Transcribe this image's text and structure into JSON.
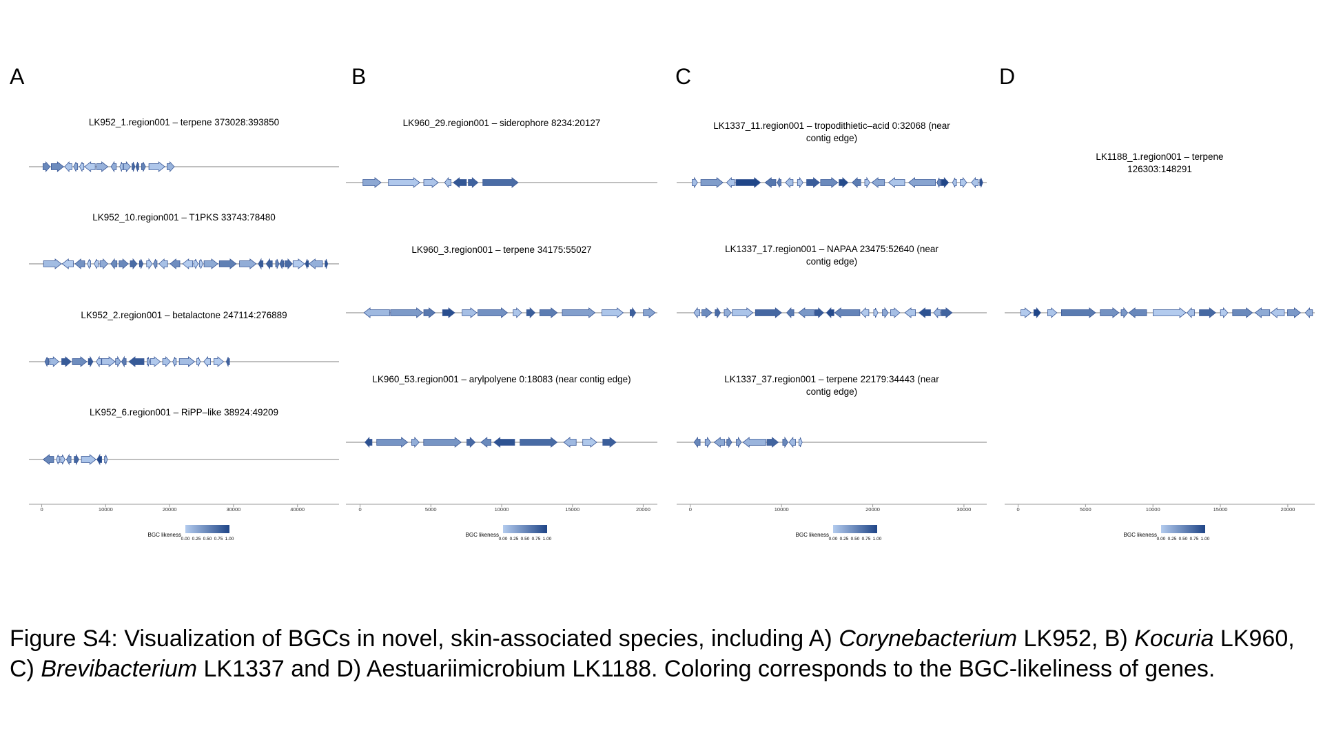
{
  "chart_data": [
    {
      "type": "gene-cluster-map",
      "panel": "A",
      "xlim": [
        -2000,
        46500
      ],
      "ticks": [
        "0",
        "10000",
        "20000",
        "30000",
        "40000"
      ],
      "tick_values": [
        0,
        10000,
        20000,
        30000,
        40000
      ],
      "legend": {
        "title": "BGC likeness",
        "ticks": [
          "0.00",
          "0.25",
          "0.50",
          "0.75",
          "1.00"
        ]
      },
      "tracks": [
        {
          "title": "LK952_1.region001 – terpene 373028:393850",
          "length": 20822
        },
        {
          "title": "LK952_10.region001 – T1PKS 33743:78480",
          "length": 44737
        },
        {
          "title": "LK952_2.region001 – betalactone 247114:276889",
          "length": 29775
        },
        {
          "title": "LK952_6.region001 – RiPP–like 38924:49209",
          "length": 10285
        }
      ]
    },
    {
      "type": "gene-cluster-map",
      "panel": "B",
      "xlim": [
        -1000,
        21000
      ],
      "ticks": [
        "0",
        "5000",
        "10000",
        "15000",
        "20000"
      ],
      "tick_values": [
        0,
        5000,
        10000,
        15000,
        20000
      ],
      "legend": {
        "title": "BGC likeness",
        "ticks": [
          "0.00",
          "0.25",
          "0.50",
          "0.75",
          "1.00"
        ]
      },
      "tracks": [
        {
          "title": "LK960_29.region001 – siderophore 8234:20127",
          "length": 11893
        },
        {
          "title": "LK960_3.region001 – terpene 34175:55027",
          "length": 20852
        },
        {
          "title": "LK960_53.region001 – arylpolyene 0:18083 (near contig edge)",
          "length": 18083
        }
      ]
    },
    {
      "type": "gene-cluster-map",
      "panel": "C",
      "xlim": [
        -1500,
        32500
      ],
      "ticks": [
        "0",
        "10000",
        "20000",
        "30000"
      ],
      "tick_values": [
        0,
        10000,
        20000,
        30000
      ],
      "legend": {
        "title": "BGC likeness",
        "ticks": [
          "0.00",
          "0.25",
          "0.50",
          "0.75",
          "1.00"
        ]
      },
      "tracks": [
        {
          "title": "LK1337_11.region001 – tropodithietic–acid 0:32068 (near\ncontig edge)",
          "length": 32068
        },
        {
          "title": "LK1337_17.region001 – NAPAA 23475:52640 (near\ncontig edge)",
          "length": 29165
        },
        {
          "title": "LK1337_37.region001 – terpene 22179:34443 (near\ncontig edge)",
          "length": 12264
        }
      ]
    },
    {
      "type": "gene-cluster-map",
      "panel": "D",
      "xlim": [
        -1000,
        22000
      ],
      "ticks": [
        "0",
        "5000",
        "10000",
        "15000",
        "20000"
      ],
      "tick_values": [
        0,
        5000,
        10000,
        15000,
        20000
      ],
      "legend": {
        "title": "BGC likeness",
        "ticks": [
          "0.00",
          "0.25",
          "0.50",
          "0.75",
          "1.00"
        ]
      },
      "tracks": [
        {
          "title": "LK1188_1.region001 – terpene\n126303:148291",
          "length": 21988
        }
      ]
    }
  ],
  "caption": {
    "p1": "Figure S4: Visualization of BGCs in novel, skin-associated species, including A) ",
    "i1": "Corynebacterium",
    "p2": " LK952, B) ",
    "i2": "Kocuria",
    "p3": " LK960, C) ",
    "i3": "Brevibacterium",
    "p4": " LK1337 and D) Aestuariimicrobium LK1188. Coloring corresponds to the BGC-likeliness of genes."
  },
  "colors": {
    "low": "#b3cbee",
    "high": "#1f4587",
    "baseline": "#aaaaaa",
    "stroke": "#3b5998"
  }
}
